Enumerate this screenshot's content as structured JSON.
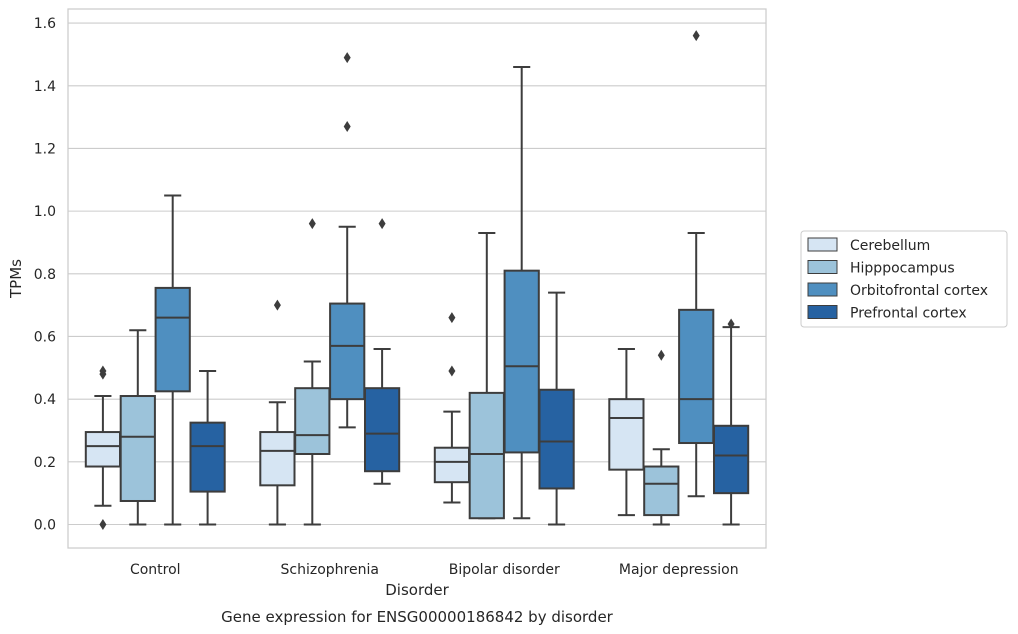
{
  "chart_data": {
    "type": "box",
    "caption": "Gene expression for ENSG00000186842 by disorder",
    "xlabel": "Disorder",
    "ylabel": "TPMs",
    "ylim": [
      -0.075,
      1.645
    ],
    "yticks": [
      0.0,
      0.2,
      0.4,
      0.6,
      0.8,
      1.0,
      1.2,
      1.4,
      1.6
    ],
    "ytick_labels": [
      "0.0",
      "0.2",
      "0.4",
      "0.6",
      "0.8",
      "1.0",
      "1.2",
      "1.4",
      "1.6"
    ],
    "grid": "horizontal",
    "legend_position": "right",
    "categories": [
      "Control",
      "Schizophrenia",
      "Bipolar disorder",
      "Major depression"
    ],
    "series": [
      {
        "name": "Cerebellum",
        "color": "#d6e5f3",
        "boxes": [
          {
            "whislo": 0.06,
            "q1": 0.185,
            "med": 0.25,
            "q3": 0.295,
            "whishi": 0.41,
            "fliers": [
              0.0,
              0.48,
              0.49
            ]
          },
          {
            "whislo": 0.0,
            "q1": 0.125,
            "med": 0.235,
            "q3": 0.295,
            "whishi": 0.39,
            "fliers": [
              0.7
            ]
          },
          {
            "whislo": 0.07,
            "q1": 0.135,
            "med": 0.2,
            "q3": 0.245,
            "whishi": 0.36,
            "fliers": [
              0.49,
              0.66
            ]
          },
          {
            "whislo": 0.03,
            "q1": 0.175,
            "med": 0.34,
            "q3": 0.4,
            "whishi": 0.56,
            "fliers": []
          }
        ]
      },
      {
        "name": "Hipppocampus",
        "color": "#9cc3da",
        "boxes": [
          {
            "whislo": 0.0,
            "q1": 0.075,
            "med": 0.28,
            "q3": 0.41,
            "whishi": 0.62,
            "fliers": []
          },
          {
            "whislo": 0.0,
            "q1": 0.225,
            "med": 0.285,
            "q3": 0.435,
            "whishi": 0.52,
            "fliers": [
              0.96
            ]
          },
          {
            "whislo": 0.02,
            "q1": 0.02,
            "med": 0.225,
            "q3": 0.42,
            "whishi": 0.93,
            "fliers": []
          },
          {
            "whislo": 0.0,
            "q1": 0.03,
            "med": 0.13,
            "q3": 0.185,
            "whishi": 0.24,
            "fliers": [
              0.54
            ]
          }
        ]
      },
      {
        "name": "Orbitofrontal cortex",
        "color": "#4f8fc0",
        "boxes": [
          {
            "whislo": 0.0,
            "q1": 0.425,
            "med": 0.66,
            "q3": 0.755,
            "whishi": 1.05,
            "fliers": []
          },
          {
            "whislo": 0.31,
            "q1": 0.4,
            "med": 0.57,
            "q3": 0.705,
            "whishi": 0.95,
            "fliers": [
              1.27,
              1.49
            ]
          },
          {
            "whislo": 0.02,
            "q1": 0.23,
            "med": 0.505,
            "q3": 0.81,
            "whishi": 1.46,
            "fliers": []
          },
          {
            "whislo": 0.09,
            "q1": 0.26,
            "med": 0.4,
            "q3": 0.685,
            "whishi": 0.93,
            "fliers": [
              1.56
            ]
          }
        ]
      },
      {
        "name": "Prefrontal cortex",
        "color": "#2662a2",
        "boxes": [
          {
            "whislo": 0.0,
            "q1": 0.105,
            "med": 0.25,
            "q3": 0.325,
            "whishi": 0.49,
            "fliers": []
          },
          {
            "whislo": 0.13,
            "q1": 0.17,
            "med": 0.29,
            "q3": 0.435,
            "whishi": 0.56,
            "fliers": [
              0.96
            ]
          },
          {
            "whislo": 0.0,
            "q1": 0.115,
            "med": 0.265,
            "q3": 0.43,
            "whishi": 0.74,
            "fliers": []
          },
          {
            "whislo": 0.0,
            "q1": 0.1,
            "med": 0.22,
            "q3": 0.315,
            "whishi": 0.63,
            "fliers": [
              0.64
            ]
          }
        ]
      }
    ]
  }
}
